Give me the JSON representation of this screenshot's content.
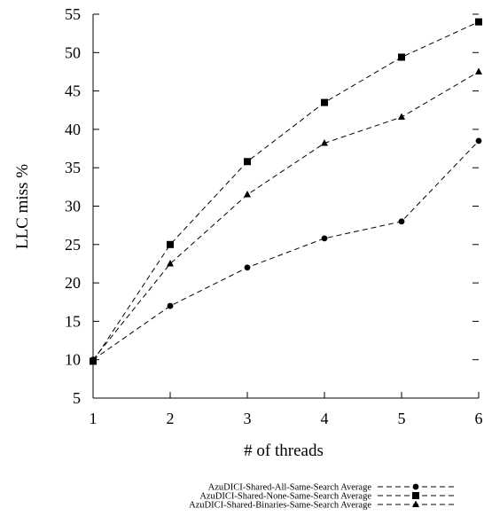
{
  "chart_data": {
    "type": "line",
    "xlabel": "# of threads",
    "ylabel": "LLC miss %",
    "x": [
      1,
      2,
      3,
      4,
      5,
      6
    ],
    "xlim": [
      1,
      6
    ],
    "ylim": [
      5,
      55
    ],
    "xticks": [
      "1",
      "2",
      "3",
      "4",
      "5",
      "6"
    ],
    "yticks": [
      "5",
      "10",
      "15",
      "20",
      "25",
      "30",
      "35",
      "40",
      "45",
      "50",
      "55"
    ],
    "grid": false,
    "legend_position": "bottom-center",
    "series": [
      {
        "name": "AzuDICI-Shared-All-Same-Search Average",
        "marker": "circle",
        "values": [
          10,
          17,
          22,
          25.8,
          28,
          38.5
        ]
      },
      {
        "name": "AzuDICI-Shared-None-Same-Search Average",
        "marker": "square",
        "values": [
          9.8,
          25,
          35.8,
          43.5,
          49.4,
          54
        ]
      },
      {
        "name": "AzuDICI-Shared-Binaries-Same-Search Average",
        "marker": "triangle",
        "values": [
          10,
          22.5,
          31.5,
          38.2,
          41.6,
          47.5
        ]
      }
    ]
  }
}
